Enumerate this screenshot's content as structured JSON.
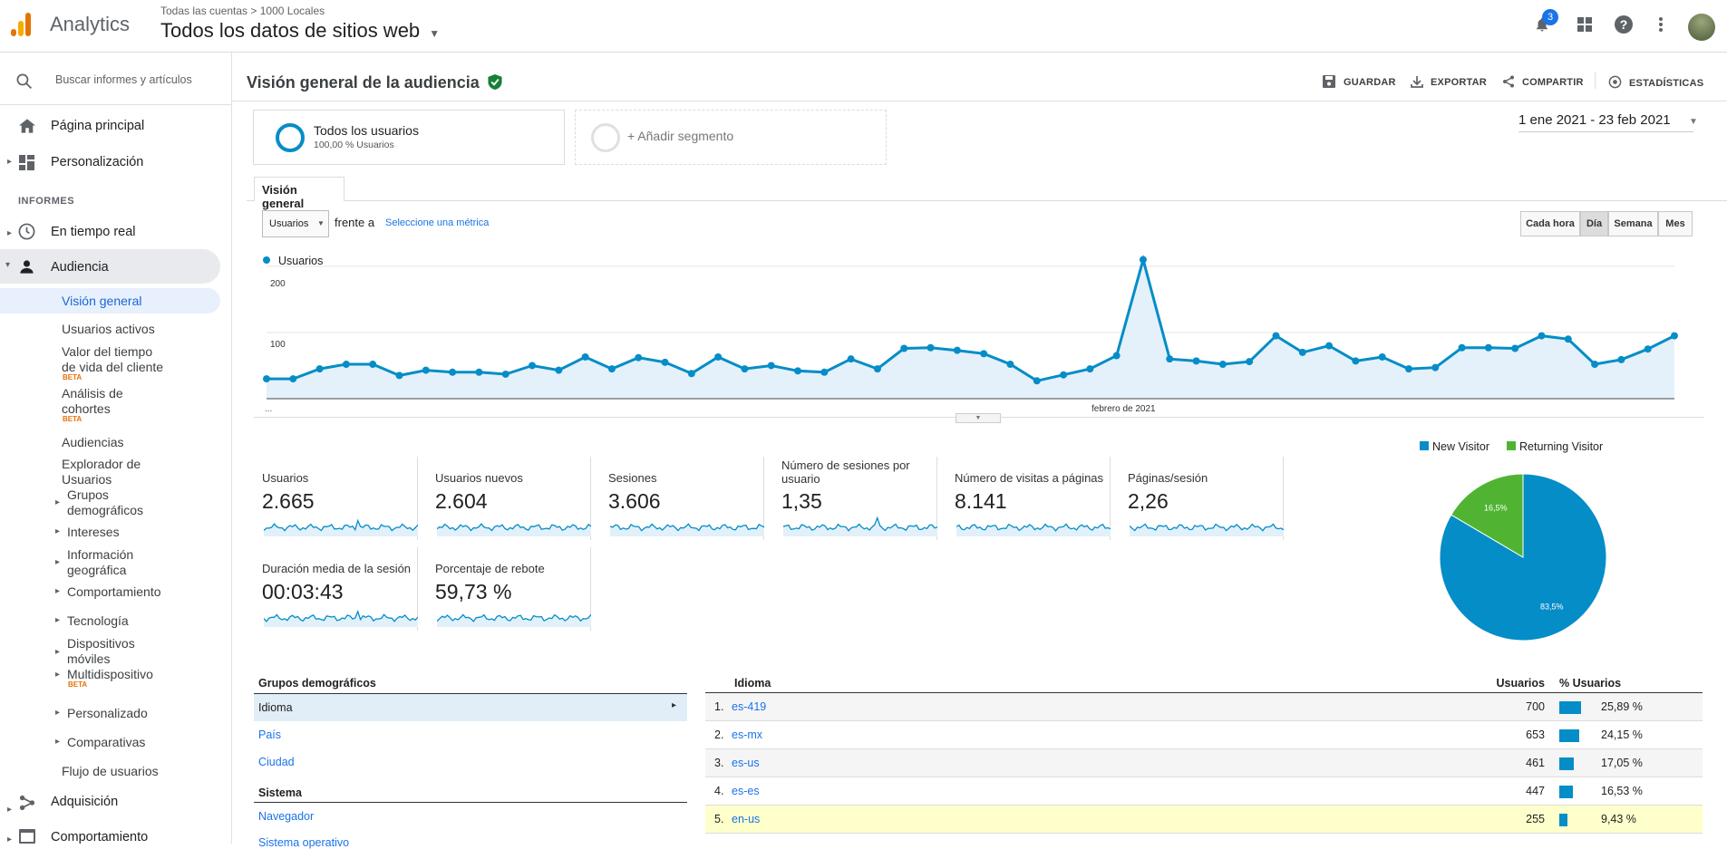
{
  "header": {
    "app_name": "Analytics",
    "breadcrumb": "Todas las cuentas > 1000 Locales",
    "property_title": "Todos los datos de sitios web",
    "notification_count": "3"
  },
  "sidebar": {
    "search_placeholder": "Buscar informes y artículos",
    "home": "Página principal",
    "customization": "Personalización",
    "reports_heading": "INFORMES",
    "realtime": "En tiempo real",
    "audience": "Audiencia",
    "audience_items": {
      "overview": "Visión general",
      "active_users": "Usuarios activos",
      "ltv_1": "Valor del tiempo",
      "ltv_2": "de vida del cliente",
      "cohort_1": "Análisis de",
      "cohort_2": "cohortes",
      "audiences": "Audiencias",
      "explorer_1": "Explorador de",
      "explorer_2": "Usuarios",
      "demographics_1": "Grupos",
      "demographics_2": "demográficos",
      "interests": "Intereses",
      "geo_1": "Información",
      "geo_2": "geográfica",
      "behavior": "Comportamiento",
      "technology": "Tecnología",
      "mobile_1": "Dispositivos",
      "mobile_2": "móviles",
      "crossdevice": "Multidispositivo",
      "custom": "Personalizado",
      "benchmarking": "Comparativas",
      "users_flow": "Flujo de usuarios"
    },
    "beta": "BETA",
    "acquisition": "Adquisición",
    "behavior": "Comportamiento"
  },
  "page": {
    "title": "Visión general de la audiencia",
    "tools": {
      "save": "GUARDAR",
      "export": "EXPORTAR",
      "share": "COMPARTIR",
      "insights": "ESTADÍSTICAS"
    },
    "segment": {
      "name": "Todos los usuarios",
      "pct": "100,00 % Usuarios",
      "add": "+ Añadir segmento"
    },
    "date_range": "1 ene 2021 - 23 feb 2021",
    "tab": "Visión general",
    "metric_select": "Usuarios",
    "versus": "frente a",
    "select_metric": "Seleccione una métrica",
    "granularity": [
      "Cada hora",
      "Día",
      "Semana",
      "Mes"
    ],
    "granularity_selected": "Día"
  },
  "chart_data": {
    "type": "line",
    "series": [
      {
        "name": "Usuarios",
        "values": [
          30,
          30,
          45,
          52,
          52,
          35,
          43,
          40,
          40,
          37,
          50,
          43,
          63,
          45,
          62,
          55,
          38,
          63,
          45,
          50,
          42,
          40,
          60,
          45,
          76,
          77,
          73,
          68,
          52,
          27,
          36,
          45,
          65,
          210,
          60,
          57,
          52,
          56,
          95,
          70,
          80,
          57,
          63,
          45,
          47,
          77,
          77,
          76,
          95,
          90,
          52,
          59,
          75,
          95
        ]
      }
    ],
    "x_label_ellipsis": "...",
    "x_tick": "febrero de 2021",
    "y_ticks": [
      "100",
      "200"
    ],
    "ylim": [
      0,
      230
    ],
    "color": "#058dc7",
    "grid": true
  },
  "metrics": [
    {
      "label": "Usuarios",
      "value": "2.665"
    },
    {
      "label": "Usuarios nuevos",
      "value": "2.604"
    },
    {
      "label": "Sesiones",
      "value": "3.606"
    },
    {
      "label": "Número de sesiones por usuario",
      "value": "1,35"
    },
    {
      "label": "Número de visitas a páginas",
      "value": "8.141"
    },
    {
      "label": "Páginas/sesión",
      "value": "2,26"
    },
    {
      "label": "Duración media de la sesión",
      "value": "00:03:43"
    },
    {
      "label": "Porcentaje de rebote",
      "value": "59,73 %"
    }
  ],
  "pie": {
    "type": "pie",
    "legend": [
      "New Visitor",
      "Returning Visitor"
    ],
    "values": [
      83.5,
      16.5
    ],
    "labels": [
      "83,5%",
      "16,5%"
    ],
    "colors": [
      "#058dc7",
      "#50b432"
    ]
  },
  "dimensions": {
    "demographics_heading": "Grupos demográficos",
    "items": [
      "Idioma",
      "País",
      "Ciudad"
    ],
    "system_heading": "Sistema",
    "system_items": [
      "Navegador",
      "Sistema operativo"
    ]
  },
  "table": {
    "col_dim": "Idioma",
    "col_users": "Usuarios",
    "col_pct": "% Usuarios",
    "rows": [
      {
        "rank": "1.",
        "lang": "es-419",
        "users": "700",
        "pct": "25,89 %",
        "share": 25.89
      },
      {
        "rank": "2.",
        "lang": "es-mx",
        "users": "653",
        "pct": "24,15 %",
        "share": 24.15
      },
      {
        "rank": "3.",
        "lang": "es-us",
        "users": "461",
        "pct": "17,05 %",
        "share": 17.05
      },
      {
        "rank": "4.",
        "lang": "es-es",
        "users": "447",
        "pct": "16,53 %",
        "share": 16.53
      },
      {
        "rank": "5.",
        "lang": "en-us",
        "users": "255",
        "pct": "9,43 %",
        "share": 9.43
      }
    ]
  }
}
